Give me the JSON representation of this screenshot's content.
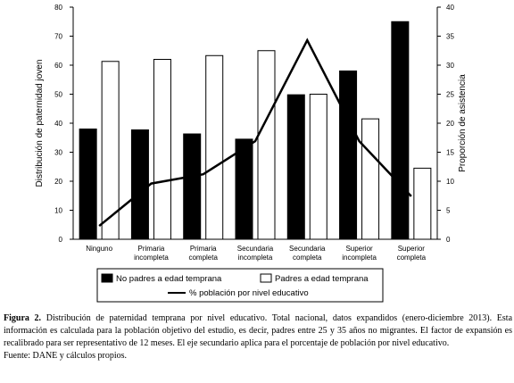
{
  "chart_data": {
    "type": "bar",
    "categories": [
      [
        "Ninguno"
      ],
      [
        "Primaria",
        "incompleta"
      ],
      [
        "Primaria",
        "completa"
      ],
      [
        "Secundaria",
        "incompleta"
      ],
      [
        "Secundaria",
        "completa"
      ],
      [
        "Superior",
        "incompleta"
      ],
      [
        "Superior",
        "completa"
      ]
    ],
    "series": [
      {
        "name": "No padres a edad temprana",
        "kind": "bar",
        "axis": "left",
        "color": "#000000",
        "values": [
          38,
          37.7,
          36.3,
          34.5,
          49.8,
          58,
          75
        ]
      },
      {
        "name": "Padres a edad temprana",
        "kind": "bar",
        "axis": "left",
        "color": "#ffffff",
        "values": [
          61.3,
          62,
          63.3,
          65,
          50,
          41.5,
          24.5
        ]
      },
      {
        "name": "% población por nivel educativo",
        "kind": "line",
        "axis": "right",
        "color": "#000000",
        "values": [
          2.3,
          9.6,
          11.2,
          16.9,
          34.3,
          16.9,
          7.4
        ]
      }
    ],
    "ylabel": "Distribución de paternidad joven",
    "y2label": "Proporción de asistencia",
    "ylim": [
      0,
      80
    ],
    "y2lim": [
      0,
      40
    ],
    "yticks": [
      0,
      10,
      20,
      30,
      40,
      50,
      60,
      70,
      80
    ],
    "y2ticks": [
      0,
      5,
      10,
      15,
      20,
      25,
      30,
      35,
      40
    ],
    "grid": false,
    "legend_position": "bottom"
  },
  "caption": {
    "label": "Figura 2.",
    "text": "Distribución de paternidad temprana por nivel educativo. Total nacional, datos expandidos (enero-diciembre 2013). Esta información es calculada para la población objetivo del estudio, es decir, padres entre 25 y 35 años no migrantes. El factor de expansión es recalibrado para ser representativo de 12 meses. El eje secundario aplica para el porcentaje de población por nivel educativo.",
    "source": "Fuente: DANE y cálculos propios."
  }
}
